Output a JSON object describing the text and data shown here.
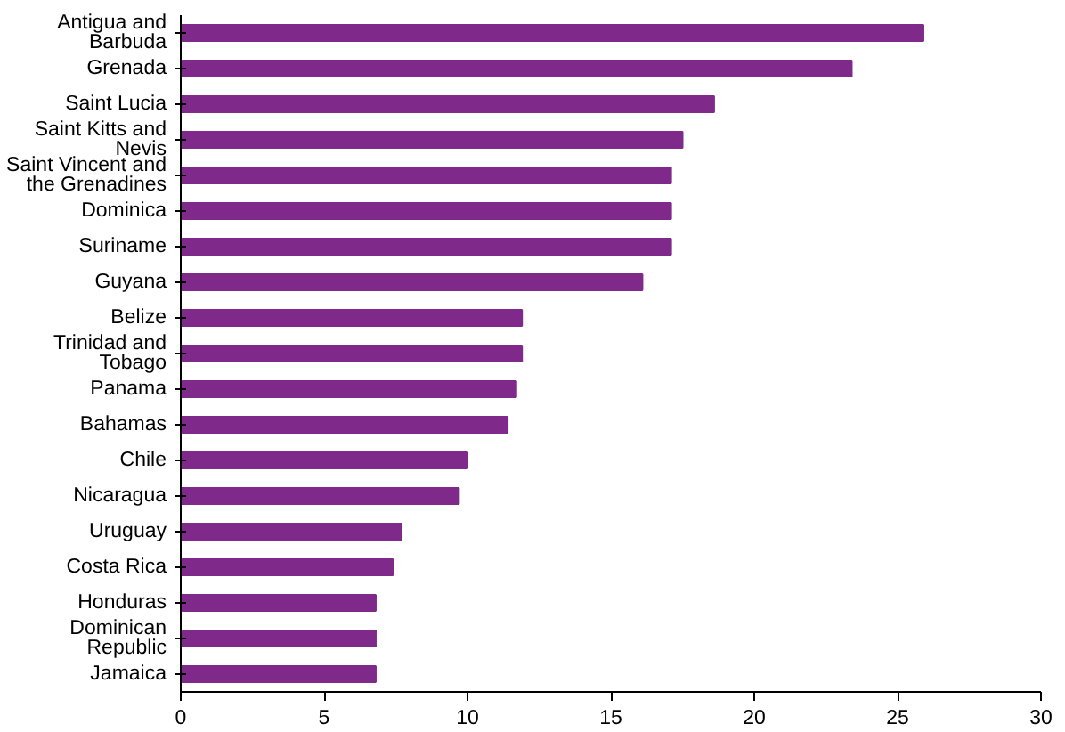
{
  "chart_data": {
    "type": "bar",
    "orientation": "horizontal",
    "categories": [
      "Antigua and Barbuda",
      "Grenada",
      "Saint Lucia",
      "Saint Kitts and Nevis",
      "Saint Vincent and the Grenadines",
      "Dominica",
      "Suriname",
      "Guyana",
      "Belize",
      "Trinidad and Tobago",
      "Panama",
      "Bahamas",
      "Chile",
      "Nicaragua",
      "Uruguay",
      "Costa Rica",
      "Honduras",
      "Dominican Republic",
      "Jamaica"
    ],
    "values": [
      25.9,
      23.4,
      18.6,
      17.5,
      17.1,
      17.1,
      17.1,
      16.1,
      11.9,
      11.9,
      11.7,
      11.4,
      10.0,
      9.7,
      7.7,
      7.4,
      6.8,
      6.8,
      6.8
    ],
    "color": "#7f2a8a",
    "xlim": [
      0,
      30
    ],
    "xticks": [
      0,
      5,
      10,
      15,
      20,
      25,
      30
    ],
    "grid": false
  }
}
